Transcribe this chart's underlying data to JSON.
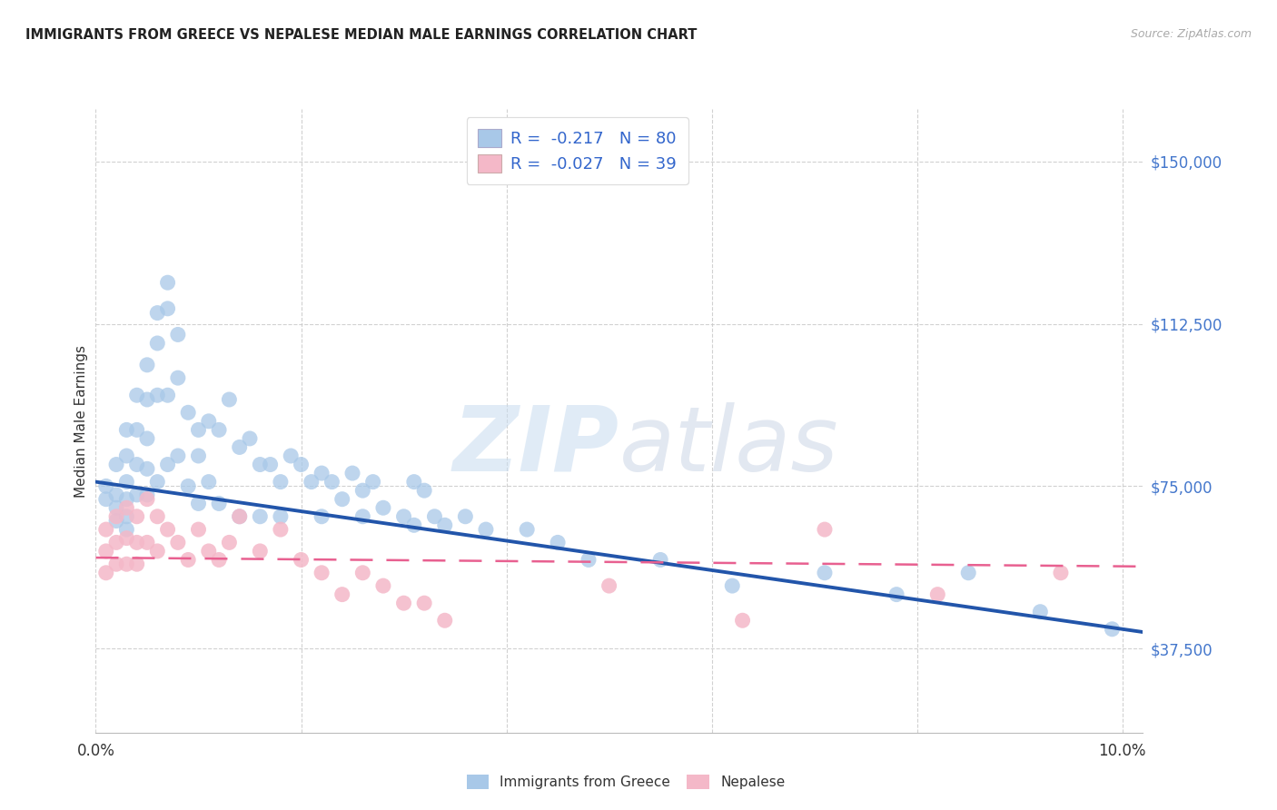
{
  "title": "IMMIGRANTS FROM GREECE VS NEPALESE MEDIAN MALE EARNINGS CORRELATION CHART",
  "source": "Source: ZipAtlas.com",
  "ylabel": "Median Male Earnings",
  "xlim": [
    0.0,
    0.102
  ],
  "ylim": [
    18000,
    162000
  ],
  "legend1_label": "R =  -0.217   N = 80",
  "legend2_label": "R =  -0.027   N = 39",
  "legend_label1": "Immigrants from Greece",
  "legend_label2": "Nepalese",
  "blue_color": "#a8c8e8",
  "pink_color": "#f4b8c8",
  "blue_line_color": "#2255aa",
  "pink_line_color": "#e86090",
  "legend_text_color": "#3366cc",
  "ytick_vals": [
    37500,
    75000,
    112500,
    150000
  ],
  "ytick_labels": [
    "$37,500",
    "$75,000",
    "$112,500",
    "$150,000"
  ],
  "blue_x": [
    0.001,
    0.001,
    0.002,
    0.002,
    0.002,
    0.002,
    0.003,
    0.003,
    0.003,
    0.003,
    0.003,
    0.003,
    0.004,
    0.004,
    0.004,
    0.004,
    0.005,
    0.005,
    0.005,
    0.005,
    0.005,
    0.006,
    0.006,
    0.006,
    0.006,
    0.007,
    0.007,
    0.007,
    0.007,
    0.008,
    0.008,
    0.008,
    0.009,
    0.009,
    0.01,
    0.01,
    0.01,
    0.011,
    0.011,
    0.012,
    0.012,
    0.013,
    0.014,
    0.014,
    0.015,
    0.016,
    0.016,
    0.017,
    0.018,
    0.018,
    0.019,
    0.02,
    0.021,
    0.022,
    0.022,
    0.023,
    0.024,
    0.025,
    0.026,
    0.026,
    0.027,
    0.028,
    0.03,
    0.031,
    0.031,
    0.032,
    0.033,
    0.034,
    0.036,
    0.038,
    0.042,
    0.045,
    0.048,
    0.055,
    0.062,
    0.071,
    0.078,
    0.085,
    0.092,
    0.099
  ],
  "blue_y": [
    75000,
    72000,
    80000,
    73000,
    70000,
    67000,
    88000,
    82000,
    76000,
    72000,
    68000,
    65000,
    96000,
    88000,
    80000,
    73000,
    103000,
    95000,
    86000,
    79000,
    73000,
    115000,
    108000,
    96000,
    76000,
    122000,
    116000,
    96000,
    80000,
    110000,
    100000,
    82000,
    92000,
    75000,
    88000,
    82000,
    71000,
    90000,
    76000,
    88000,
    71000,
    95000,
    84000,
    68000,
    86000,
    80000,
    68000,
    80000,
    76000,
    68000,
    82000,
    80000,
    76000,
    78000,
    68000,
    76000,
    72000,
    78000,
    74000,
    68000,
    76000,
    70000,
    68000,
    76000,
    66000,
    74000,
    68000,
    66000,
    68000,
    65000,
    65000,
    62000,
    58000,
    58000,
    52000,
    55000,
    50000,
    55000,
    46000,
    42000
  ],
  "pink_x": [
    0.001,
    0.001,
    0.001,
    0.002,
    0.002,
    0.002,
    0.003,
    0.003,
    0.003,
    0.004,
    0.004,
    0.004,
    0.005,
    0.005,
    0.006,
    0.006,
    0.007,
    0.008,
    0.009,
    0.01,
    0.011,
    0.012,
    0.013,
    0.014,
    0.016,
    0.018,
    0.02,
    0.022,
    0.024,
    0.026,
    0.028,
    0.03,
    0.032,
    0.034,
    0.05,
    0.063,
    0.071,
    0.082,
    0.094
  ],
  "pink_y": [
    65000,
    60000,
    55000,
    68000,
    62000,
    57000,
    70000,
    63000,
    57000,
    68000,
    62000,
    57000,
    72000,
    62000,
    68000,
    60000,
    65000,
    62000,
    58000,
    65000,
    60000,
    58000,
    62000,
    68000,
    60000,
    65000,
    58000,
    55000,
    50000,
    55000,
    52000,
    48000,
    48000,
    44000,
    52000,
    44000,
    65000,
    50000,
    55000
  ]
}
